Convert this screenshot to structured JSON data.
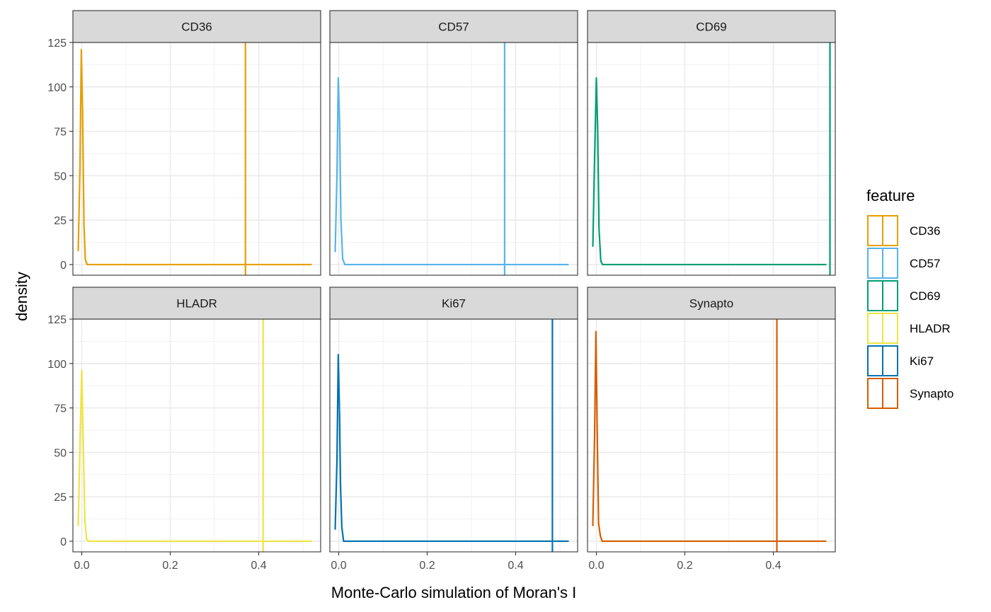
{
  "chart_data": {
    "type": "line",
    "subtype": "faceted-density",
    "xlabel": "Monte-Carlo simulation of Moran's I",
    "ylabel": "density",
    "xlim": [
      -0.02,
      0.54
    ],
    "ylim": [
      -6,
      125
    ],
    "x_ticks": [
      0.0,
      0.2,
      0.4
    ],
    "x_tick_labels": [
      "0.0",
      "0.2",
      "0.4"
    ],
    "y_ticks": [
      0,
      25,
      50,
      75,
      100,
      125
    ],
    "y_tick_labels": [
      "0",
      "25",
      "50",
      "75",
      "100",
      "125"
    ],
    "grid": true,
    "legend": {
      "title": "feature",
      "position": "right",
      "items": [
        {
          "name": "CD36",
          "color": "#E69F00"
        },
        {
          "name": "CD57",
          "color": "#56B4E9"
        },
        {
          "name": "CD69",
          "color": "#009E73"
        },
        {
          "name": "HLADR",
          "color": "#F0E442"
        },
        {
          "name": "Ki67",
          "color": "#0072B2"
        },
        {
          "name": "Synapto",
          "color": "#D55E00"
        }
      ]
    },
    "facets": [
      {
        "name": "CD36",
        "color": "#E69F00",
        "observed": 0.37,
        "density": [
          [
            -0.008,
            7.5
          ],
          [
            -0.004,
            55
          ],
          [
            -0.001,
            121
          ],
          [
            0.002,
            85
          ],
          [
            0.005,
            22
          ],
          [
            0.008,
            3
          ],
          [
            0.012,
            0
          ],
          [
            0.52,
            0
          ]
        ]
      },
      {
        "name": "CD57",
        "color": "#56B4E9",
        "observed": 0.375,
        "density": [
          [
            -0.008,
            7
          ],
          [
            -0.004,
            50
          ],
          [
            -0.001,
            105
          ],
          [
            0.002,
            80
          ],
          [
            0.005,
            25
          ],
          [
            0.009,
            3
          ],
          [
            0.014,
            0
          ],
          [
            0.52,
            0
          ]
        ]
      },
      {
        "name": "CD69",
        "color": "#009E73",
        "observed": 0.528,
        "density": [
          [
            -0.008,
            10
          ],
          [
            -0.004,
            60
          ],
          [
            0.0,
            105
          ],
          [
            0.003,
            75
          ],
          [
            0.006,
            20
          ],
          [
            0.01,
            2
          ],
          [
            0.014,
            0
          ],
          [
            0.52,
            0
          ]
        ]
      },
      {
        "name": "HLADR",
        "color": "#F0E442",
        "observed": 0.41,
        "density": [
          [
            -0.008,
            8.5
          ],
          [
            -0.004,
            55
          ],
          [
            0.0,
            96
          ],
          [
            0.003,
            60
          ],
          [
            0.007,
            12
          ],
          [
            0.011,
            1
          ],
          [
            0.016,
            0
          ],
          [
            0.52,
            0
          ]
        ]
      },
      {
        "name": "Ki67",
        "color": "#0072B2",
        "observed": 0.483,
        "density": [
          [
            -0.008,
            6.5
          ],
          [
            -0.004,
            45
          ],
          [
            -0.001,
            105
          ],
          [
            0.002,
            70
          ],
          [
            0.004,
            32
          ],
          [
            0.007,
            8
          ],
          [
            0.011,
            0
          ],
          [
            0.52,
            0
          ]
        ]
      },
      {
        "name": "Synapto",
        "color": "#D55E00",
        "observed": 0.408,
        "density": [
          [
            -0.008,
            8.5
          ],
          [
            -0.004,
            60
          ],
          [
            -0.001,
            118
          ],
          [
            0.002,
            60
          ],
          [
            0.005,
            10
          ],
          [
            0.009,
            3
          ],
          [
            0.013,
            0
          ],
          [
            0.52,
            0
          ]
        ]
      }
    ]
  }
}
